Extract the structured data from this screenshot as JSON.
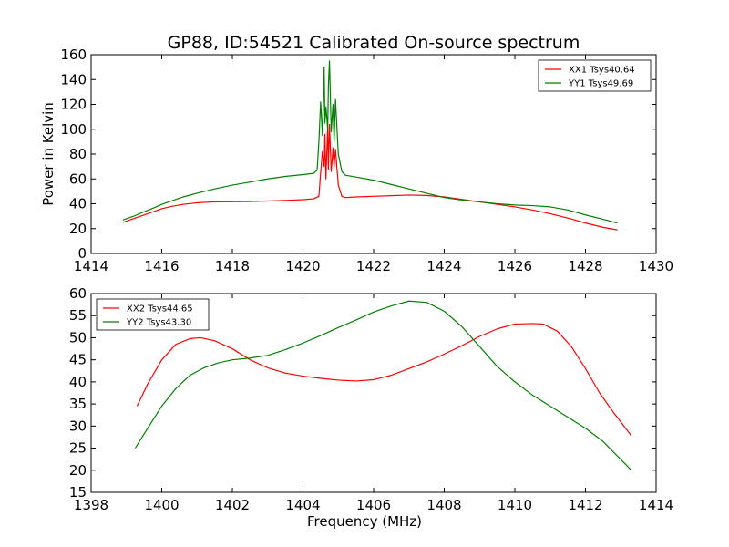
{
  "figure": {
    "title": "GP88, ID:54521 Calibrated On-source spectrum"
  },
  "chart_data": [
    {
      "type": "line",
      "title": "GP88, ID:54521 Calibrated On-source spectrum",
      "xlabel": "",
      "ylabel": "Power in Kelvin",
      "xlim": [
        1414,
        1430
      ],
      "ylim": [
        0,
        160
      ],
      "xticks": [
        1414,
        1416,
        1418,
        1420,
        1422,
        1424,
        1426,
        1428,
        1430
      ],
      "yticks": [
        0,
        20,
        40,
        60,
        80,
        100,
        120,
        140,
        160
      ],
      "grid": false,
      "legend_position": "top-right",
      "series": [
        {
          "name": "XX1 Tsys40.64",
          "color": "#ff0000",
          "x": [
            1414.9,
            1415.2,
            1415.5,
            1415.8,
            1416.0,
            1416.3,
            1416.6,
            1417.0,
            1417.5,
            1418.0,
            1418.5,
            1419.0,
            1419.5,
            1420.0,
            1420.3,
            1420.45,
            1420.5,
            1420.55,
            1420.6,
            1420.62,
            1420.65,
            1420.7,
            1420.72,
            1420.75,
            1420.8,
            1420.85,
            1420.88,
            1420.92,
            1421.0,
            1421.1,
            1421.2,
            1421.5,
            1422.0,
            1422.5,
            1423.0,
            1423.5,
            1424.0,
            1424.5,
            1425.0,
            1425.5,
            1426.0,
            1426.5,
            1427.0,
            1427.5,
            1428.0,
            1428.5,
            1428.9
          ],
          "values": [
            25,
            28,
            31,
            34,
            36,
            38,
            39.5,
            40.8,
            41.5,
            41.6,
            41.8,
            42.2,
            42.7,
            43.3,
            44,
            46,
            65,
            82,
            70,
            96,
            60,
            102,
            68,
            104,
            66,
            85,
            70,
            84,
            55,
            46,
            45,
            45.5,
            46,
            46.5,
            47,
            46.7,
            45.5,
            43.5,
            41.5,
            39.5,
            37.5,
            35,
            32,
            28.5,
            24.5,
            21,
            19
          ]
        },
        {
          "name": "YY1 Tsys49.69",
          "color": "#008000",
          "x": [
            1414.9,
            1415.2,
            1415.5,
            1415.8,
            1416.0,
            1416.3,
            1416.6,
            1417.0,
            1417.5,
            1418.0,
            1418.5,
            1419.0,
            1419.5,
            1420.0,
            1420.3,
            1420.4,
            1420.45,
            1420.5,
            1420.55,
            1420.6,
            1420.62,
            1420.65,
            1420.7,
            1420.72,
            1420.75,
            1420.8,
            1420.85,
            1420.88,
            1420.92,
            1421.0,
            1421.1,
            1421.2,
            1421.5,
            1422.0,
            1422.5,
            1423.0,
            1423.5,
            1424.0,
            1424.5,
            1425.0,
            1425.5,
            1426.0,
            1426.5,
            1427.0,
            1427.5,
            1428.0,
            1428.5,
            1428.9
          ],
          "values": [
            27,
            30,
            33.5,
            37,
            39.5,
            42.5,
            45.5,
            48.5,
            52,
            55,
            57.5,
            60,
            62,
            63.5,
            64.5,
            67,
            90,
            122,
            95,
            150,
            105,
            118,
            100,
            135,
            155,
            98,
            120,
            90,
            124,
            80,
            66,
            63,
            61.5,
            59,
            55.5,
            52,
            48.5,
            45,
            43,
            41.5,
            40,
            39,
            38.5,
            37.5,
            35,
            31,
            27.5,
            24.5
          ]
        }
      ]
    },
    {
      "type": "line",
      "title": "",
      "xlabel": "Frequency (MHz)",
      "ylabel": "",
      "xlim": [
        1398,
        1414
      ],
      "ylim": [
        15,
        60
      ],
      "xticks": [
        1398,
        1400,
        1402,
        1404,
        1406,
        1408,
        1410,
        1412,
        1414
      ],
      "yticks": [
        15,
        20,
        25,
        30,
        35,
        40,
        45,
        50,
        55,
        60
      ],
      "grid": false,
      "legend_position": "top-left",
      "series": [
        {
          "name": "XX2 Tsys44.65",
          "color": "#ff0000",
          "x": [
            1399.3,
            1399.6,
            1400.0,
            1400.4,
            1400.8,
            1401.1,
            1401.5,
            1402.0,
            1402.5,
            1403.0,
            1403.5,
            1404.0,
            1404.5,
            1405.0,
            1405.5,
            1406.0,
            1406.5,
            1407.0,
            1407.5,
            1408.0,
            1408.5,
            1409.0,
            1409.5,
            1410.0,
            1410.5,
            1410.8,
            1411.2,
            1411.6,
            1412.0,
            1412.4,
            1412.8,
            1413.3
          ],
          "values": [
            34.5,
            39.5,
            45,
            48.5,
            49.8,
            50,
            49.3,
            47.5,
            45,
            43.2,
            42,
            41.3,
            40.8,
            40.4,
            40.2,
            40.5,
            41.5,
            43,
            44.5,
            46.3,
            48.2,
            50.3,
            52,
            53.1,
            53.2,
            53.1,
            51.5,
            48,
            43,
            37.5,
            33,
            27.8
          ]
        },
        {
          "name": "YY2 Tsys43.30",
          "color": "#008000",
          "x": [
            1399.25,
            1399.6,
            1400.0,
            1400.4,
            1400.8,
            1401.2,
            1401.6,
            1402.0,
            1402.5,
            1403.0,
            1403.5,
            1404.0,
            1404.5,
            1405.0,
            1405.5,
            1406.0,
            1406.5,
            1407.0,
            1407.5,
            1408.0,
            1408.5,
            1409.0,
            1409.5,
            1410.0,
            1410.5,
            1411.0,
            1411.5,
            1412.0,
            1412.5,
            1413.3
          ],
          "values": [
            25,
            29.5,
            34.5,
            38.5,
            41.5,
            43.2,
            44.3,
            45,
            45.4,
            46,
            47.3,
            48.8,
            50.5,
            52.3,
            54,
            55.8,
            57.2,
            58.3,
            58,
            56,
            52.5,
            48,
            43.5,
            40,
            37,
            34.5,
            32,
            29.5,
            26.5,
            20
          ]
        }
      ]
    }
  ]
}
